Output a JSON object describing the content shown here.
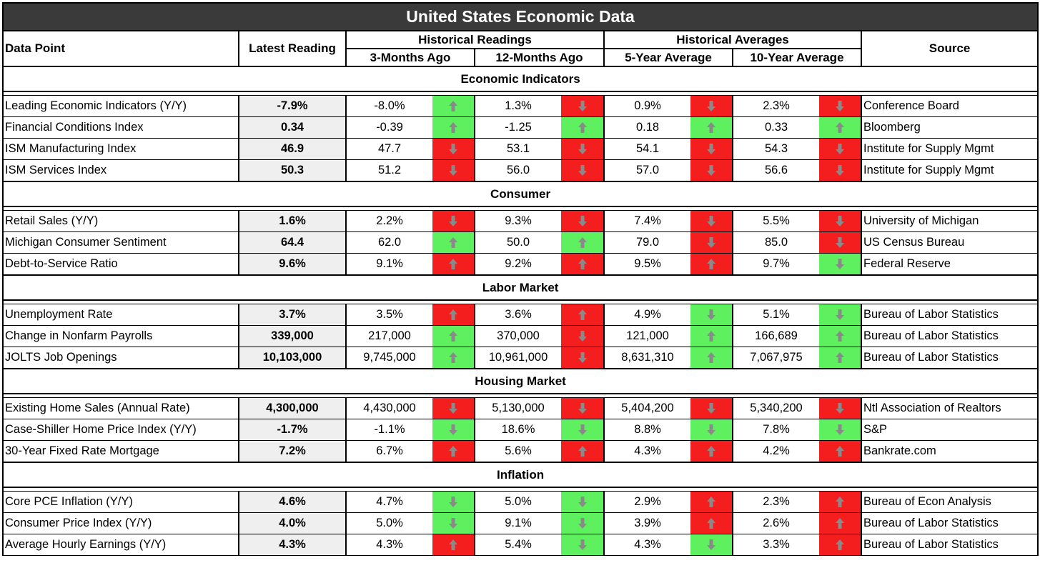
{
  "title": "United States Economic Data",
  "headers": {
    "data_point": "Data Point",
    "latest": "Latest  Reading",
    "historical_readings": "Historical Readings",
    "three_months": "3-Months Ago",
    "twelve_months": "12-Months Ago",
    "historical_averages": "Historical Averages",
    "five_year": "5-Year Average",
    "ten_year": "10-Year Average",
    "source": "Source"
  },
  "colors": {
    "green": "#5ef05e",
    "red": "#f51e1e",
    "title_bg": "#3a3a3a",
    "latest_bg": "#efefef"
  },
  "sections": [
    {
      "name": "Economic Indicators",
      "rows": [
        {
          "name": "Leading Economic Indicators (Y/Y)",
          "latest": "-7.9%",
          "m3": "-8.0%",
          "m3_arrow": "up-green",
          "m12": "1.3%",
          "m12_arrow": "down-red",
          "y5": "0.9%",
          "y5_arrow": "down-red",
          "y10": "2.3%",
          "y10_arrow": "down-red",
          "source": "Conference Board"
        },
        {
          "name": "Financial Conditions Index",
          "latest": "0.34",
          "m3": "-0.39",
          "m3_arrow": "up-green",
          "m12": "-1.25",
          "m12_arrow": "up-green",
          "y5": "0.18",
          "y5_arrow": "up-green",
          "y10": "0.33",
          "y10_arrow": "up-green",
          "source": "Bloomberg"
        },
        {
          "name": "ISM Manufacturing Index",
          "latest": "46.9",
          "m3": "47.7",
          "m3_arrow": "down-red",
          "m12": "53.1",
          "m12_arrow": "down-red",
          "y5": "54.1",
          "y5_arrow": "down-red",
          "y10": "54.3",
          "y10_arrow": "down-red",
          "source": "Institute for Supply Mgmt"
        },
        {
          "name": "ISM Services Index",
          "latest": "50.3",
          "m3": "51.2",
          "m3_arrow": "down-red",
          "m12": "56.0",
          "m12_arrow": "down-red",
          "y5": "57.0",
          "y5_arrow": "down-red",
          "y10": "56.6",
          "y10_arrow": "down-red",
          "source": "Institute for Supply Mgmt"
        }
      ]
    },
    {
      "name": "Consumer",
      "rows": [
        {
          "name": "Retail Sales (Y/Y)",
          "latest": "1.6%",
          "m3": "2.2%",
          "m3_arrow": "down-red",
          "m12": "9.3%",
          "m12_arrow": "down-red",
          "y5": "7.4%",
          "y5_arrow": "down-red",
          "y10": "5.5%",
          "y10_arrow": "down-red",
          "source": "University of Michigan"
        },
        {
          "name": "Michigan Consumer Sentiment",
          "latest": "64.4",
          "m3": "62.0",
          "m3_arrow": "up-green",
          "m12": "50.0",
          "m12_arrow": "up-green",
          "y5": "79.0",
          "y5_arrow": "down-red",
          "y10": "85.0",
          "y10_arrow": "down-red",
          "source": "US Census Bureau"
        },
        {
          "name": "Debt-to-Service Ratio",
          "latest": "9.6%",
          "m3": "9.1%",
          "m3_arrow": "up-red",
          "m12": "9.2%",
          "m12_arrow": "up-red",
          "y5": "9.5%",
          "y5_arrow": "up-red",
          "y10": "9.7%",
          "y10_arrow": "down-green",
          "source": "Federal Reserve"
        }
      ]
    },
    {
      "name": "Labor Market",
      "rows": [
        {
          "name": "Unemployment Rate",
          "latest": "3.7%",
          "m3": "3.5%",
          "m3_arrow": "up-red",
          "m12": "3.6%",
          "m12_arrow": "up-red",
          "y5": "4.9%",
          "y5_arrow": "down-green",
          "y10": "5.1%",
          "y10_arrow": "down-green",
          "source": "Bureau of Labor Statistics"
        },
        {
          "name": "Change in Nonfarm Payrolls",
          "latest": "339,000",
          "m3": "217,000",
          "m3_arrow": "up-green",
          "m12": "370,000",
          "m12_arrow": "down-red",
          "y5": "121,000",
          "y5_arrow": "up-green",
          "y10": "166,689",
          "y10_arrow": "up-green",
          "source": "Bureau of Labor Statistics"
        },
        {
          "name": "JOLTS Job Openings",
          "latest": "10,103,000",
          "m3": "9,745,000",
          "m3_arrow": "up-green",
          "m12": "10,961,000",
          "m12_arrow": "down-red",
          "y5": "8,631,310",
          "y5_arrow": "up-green",
          "y10": "7,067,975",
          "y10_arrow": "up-green",
          "source": "Bureau of Labor Statistics"
        }
      ]
    },
    {
      "name": "Housing Market",
      "rows": [
        {
          "name": "Existing Home Sales (Annual Rate)",
          "latest": "4,300,000",
          "m3": "4,430,000",
          "m3_arrow": "down-red",
          "m12": "5,130,000",
          "m12_arrow": "down-red",
          "y5": "5,404,200",
          "y5_arrow": "down-red",
          "y10": "5,340,200",
          "y10_arrow": "down-red",
          "source": "Ntl Association of Realtors"
        },
        {
          "name": "Case-Shiller Home Price Index (Y/Y)",
          "latest": "-1.7%",
          "m3": "-1.1%",
          "m3_arrow": "down-green",
          "m12": "18.6%",
          "m12_arrow": "down-green",
          "y5": "8.8%",
          "y5_arrow": "down-green",
          "y10": "7.8%",
          "y10_arrow": "down-green",
          "source": "S&P"
        },
        {
          "name": "30-Year Fixed Rate Mortgage",
          "latest": "7.2%",
          "m3": "6.7%",
          "m3_arrow": "up-red",
          "m12": "5.6%",
          "m12_arrow": "up-red",
          "y5": "4.3%",
          "y5_arrow": "up-red",
          "y10": "4.2%",
          "y10_arrow": "up-red",
          "source": "Bankrate.com"
        }
      ]
    },
    {
      "name": "Inflation",
      "rows": [
        {
          "name": "Core PCE Inflation (Y/Y)",
          "latest": "4.6%",
          "m3": "4.7%",
          "m3_arrow": "down-green",
          "m12": "5.0%",
          "m12_arrow": "down-green",
          "y5": "2.9%",
          "y5_arrow": "up-red",
          "y10": "2.3%",
          "y10_arrow": "up-red",
          "source": "Bureau of Econ Analysis"
        },
        {
          "name": "Consumer Price Index (Y/Y)",
          "latest": "4.0%",
          "m3": "5.0%",
          "m3_arrow": "down-green",
          "m12": "9.1%",
          "m12_arrow": "down-green",
          "y5": "3.9%",
          "y5_arrow": "up-red",
          "y10": "2.6%",
          "y10_arrow": "up-red",
          "source": "Bureau of Labor Statistics"
        },
        {
          "name": "Average Hourly Earnings (Y/Y)",
          "latest": "4.3%",
          "m3": "4.3%",
          "m3_arrow": "up-red",
          "m12": "5.4%",
          "m12_arrow": "down-green",
          "y5": "4.3%",
          "y5_arrow": "down-green",
          "y10": "3.3%",
          "y10_arrow": "up-red",
          "source": "Bureau of Labor Statistics"
        }
      ]
    }
  ]
}
